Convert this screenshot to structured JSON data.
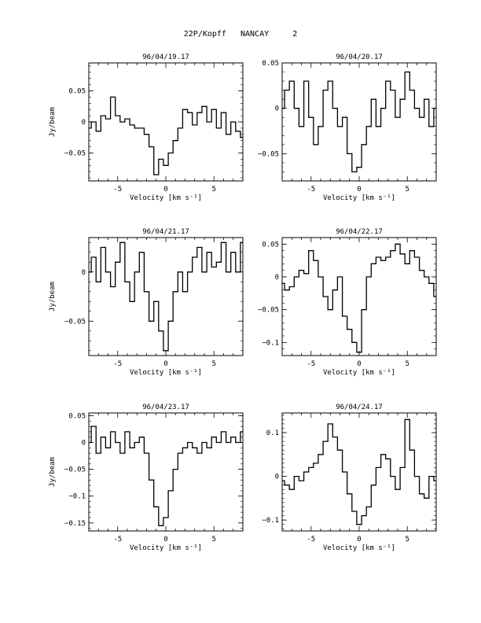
{
  "page": {
    "title": "22P/Kopff   NANCAY     2"
  },
  "chart_data": [
    {
      "type": "line",
      "title": "96/04/19.17",
      "xlabel": "Velocity [km s⁻¹]",
      "ylabel": "Jy/beam",
      "xlim": [
        -8,
        8
      ],
      "ylim": [
        -0.095,
        0.095
      ],
      "xticks": [
        -5,
        0,
        5
      ],
      "yticks": [
        -0.05,
        0,
        0.05
      ],
      "yticklabels": [
        "−0.05",
        "0",
        "0.05"
      ],
      "series": [
        {
          "x": [
            -8.0,
            -7.5,
            -7.0,
            -6.5,
            -6.0,
            -5.5,
            -5.0,
            -4.5,
            -4.0,
            -3.5,
            -3.0,
            -2.5,
            -2.0,
            -1.5,
            -1.0,
            -0.5,
            0.0,
            0.5,
            1.0,
            1.5,
            2.0,
            2.5,
            3.0,
            3.5,
            4.0,
            4.5,
            5.0,
            5.5,
            6.0,
            6.5,
            7.0,
            7.5,
            8.0
          ],
          "y": [
            -0.01,
            0.0,
            -0.015,
            0.01,
            0.005,
            0.04,
            0.01,
            0.0,
            0.005,
            -0.005,
            -0.01,
            -0.01,
            -0.02,
            -0.04,
            -0.085,
            -0.06,
            -0.07,
            -0.05,
            -0.03,
            -0.01,
            0.02,
            0.015,
            -0.005,
            0.015,
            0.025,
            0.0,
            0.02,
            -0.01,
            0.015,
            -0.02,
            0.0,
            -0.015,
            -0.025
          ]
        }
      ]
    },
    {
      "type": "line",
      "title": "96/04/20.17",
      "xlabel": "Velocity [km s⁻¹]",
      "ylabel": "",
      "xlim": [
        -8,
        8
      ],
      "ylim": [
        -0.08,
        0.05
      ],
      "xticks": [
        -5,
        0,
        5
      ],
      "yticks": [
        -0.05,
        0,
        0.05
      ],
      "yticklabels": [
        "−0.05",
        "0",
        "0.05"
      ],
      "series": [
        {
          "x": [
            -8.0,
            -7.5,
            -7.0,
            -6.5,
            -6.0,
            -5.5,
            -5.0,
            -4.5,
            -4.0,
            -3.5,
            -3.0,
            -2.5,
            -2.0,
            -1.5,
            -1.0,
            -0.5,
            0.0,
            0.5,
            1.0,
            1.5,
            2.0,
            2.5,
            3.0,
            3.5,
            4.0,
            4.5,
            5.0,
            5.5,
            6.0,
            6.5,
            7.0,
            7.5,
            8.0
          ],
          "y": [
            0.0,
            0.02,
            0.03,
            0.0,
            -0.02,
            0.03,
            -0.01,
            -0.04,
            -0.02,
            0.02,
            0.03,
            0.0,
            -0.02,
            -0.01,
            -0.05,
            -0.07,
            -0.065,
            -0.04,
            -0.02,
            0.01,
            -0.02,
            0.0,
            0.03,
            0.02,
            -0.01,
            0.01,
            0.04,
            0.02,
            0.0,
            -0.01,
            0.01,
            -0.02,
            0.0
          ]
        }
      ]
    },
    {
      "type": "line",
      "title": "96/04/21.17",
      "xlabel": "Velocity [km s⁻¹]",
      "ylabel": "Jy/beam",
      "xlim": [
        -8,
        8
      ],
      "ylim": [
        -0.085,
        0.035
      ],
      "xticks": [
        -5,
        0,
        5
      ],
      "yticks": [
        -0.05,
        0
      ],
      "yticklabels": [
        "−0.05",
        "0"
      ],
      "series": [
        {
          "x": [
            -8.0,
            -7.5,
            -7.0,
            -6.5,
            -6.0,
            -5.5,
            -5.0,
            -4.5,
            -4.0,
            -3.5,
            -3.0,
            -2.5,
            -2.0,
            -1.5,
            -1.0,
            -0.5,
            0.0,
            0.5,
            1.0,
            1.5,
            2.0,
            2.5,
            3.0,
            3.5,
            4.0,
            4.5,
            5.0,
            5.5,
            6.0,
            6.5,
            7.0,
            7.5,
            8.0
          ],
          "y": [
            0.0,
            0.015,
            -0.01,
            0.025,
            0.0,
            -0.015,
            0.01,
            0.03,
            -0.01,
            -0.03,
            0.0,
            0.02,
            -0.02,
            -0.05,
            -0.03,
            -0.06,
            -0.08,
            -0.05,
            -0.02,
            0.0,
            -0.02,
            0.0,
            0.015,
            0.025,
            0.0,
            0.02,
            0.005,
            0.01,
            0.03,
            0.0,
            0.02,
            0.0,
            0.03
          ]
        }
      ]
    },
    {
      "type": "line",
      "title": "96/04/22.17",
      "xlabel": "Velocity [km s⁻¹]",
      "ylabel": "",
      "xlim": [
        -8,
        8
      ],
      "ylim": [
        -0.12,
        0.06
      ],
      "xticks": [
        -5,
        0,
        5
      ],
      "yticks": [
        -0.1,
        -0.05,
        0,
        0.05
      ],
      "yticklabels": [
        "−0.1",
        "−0.05",
        "0",
        "0.05"
      ],
      "series": [
        {
          "x": [
            -8.0,
            -7.5,
            -7.0,
            -6.5,
            -6.0,
            -5.5,
            -5.0,
            -4.5,
            -4.0,
            -3.5,
            -3.0,
            -2.5,
            -2.0,
            -1.5,
            -1.0,
            -0.5,
            0.0,
            0.5,
            1.0,
            1.5,
            2.0,
            2.5,
            3.0,
            3.5,
            4.0,
            4.5,
            5.0,
            5.5,
            6.0,
            6.5,
            7.0,
            7.5,
            8.0
          ],
          "y": [
            -0.01,
            -0.02,
            -0.015,
            0.0,
            0.01,
            0.005,
            0.04,
            0.025,
            0.0,
            -0.03,
            -0.05,
            -0.02,
            0.0,
            -0.06,
            -0.08,
            -0.1,
            -0.115,
            -0.05,
            0.0,
            0.02,
            0.03,
            0.025,
            0.03,
            0.04,
            0.05,
            0.035,
            0.02,
            0.04,
            0.03,
            0.01,
            0.0,
            -0.01,
            -0.03
          ]
        }
      ]
    },
    {
      "type": "line",
      "title": "96/04/23.17",
      "xlabel": "Velocity [km s⁻¹]",
      "ylabel": "Jy/beam",
      "xlim": [
        -8,
        8
      ],
      "ylim": [
        -0.165,
        0.055
      ],
      "xticks": [
        -5,
        0,
        5
      ],
      "yticks": [
        -0.15,
        -0.1,
        -0.05,
        0,
        0.05
      ],
      "yticklabels": [
        "−0.15",
        "−0.1",
        "−0.05",
        "0",
        "0.05"
      ],
      "series": [
        {
          "x": [
            -8.0,
            -7.5,
            -7.0,
            -6.5,
            -6.0,
            -5.5,
            -5.0,
            -4.5,
            -4.0,
            -3.5,
            -3.0,
            -2.5,
            -2.0,
            -1.5,
            -1.0,
            -0.5,
            0.0,
            0.5,
            1.0,
            1.5,
            2.0,
            2.5,
            3.0,
            3.5,
            4.0,
            4.5,
            5.0,
            5.5,
            6.0,
            6.5,
            7.0,
            7.5,
            8.0
          ],
          "y": [
            0.0,
            0.03,
            -0.02,
            0.01,
            -0.01,
            0.02,
            0.0,
            -0.02,
            0.02,
            -0.01,
            0.0,
            0.01,
            -0.02,
            -0.07,
            -0.12,
            -0.155,
            -0.14,
            -0.09,
            -0.05,
            -0.02,
            -0.01,
            0.0,
            -0.01,
            -0.02,
            0.0,
            -0.01,
            0.01,
            0.0,
            0.02,
            0.0,
            0.01,
            0.0,
            0.02
          ]
        }
      ]
    },
    {
      "type": "line",
      "title": "96/04/24.17",
      "xlabel": "Velocity [km s⁻¹]",
      "ylabel": "",
      "xlim": [
        -8,
        8
      ],
      "ylim": [
        -0.125,
        0.145
      ],
      "xticks": [
        -5,
        0,
        5
      ],
      "yticks": [
        -0.1,
        0,
        0.1
      ],
      "yticklabels": [
        "−0.1",
        "0",
        "0.1"
      ],
      "series": [
        {
          "x": [
            -8.0,
            -7.5,
            -7.0,
            -6.5,
            -6.0,
            -5.5,
            -5.0,
            -4.5,
            -4.0,
            -3.5,
            -3.0,
            -2.5,
            -2.0,
            -1.5,
            -1.0,
            -0.5,
            0.0,
            0.5,
            1.0,
            1.5,
            2.0,
            2.5,
            3.0,
            3.5,
            4.0,
            4.5,
            5.0,
            5.5,
            6.0,
            6.5,
            7.0,
            7.5,
            8.0
          ],
          "y": [
            -0.01,
            -0.02,
            -0.03,
            0.0,
            -0.01,
            0.01,
            0.02,
            0.03,
            0.05,
            0.08,
            0.12,
            0.09,
            0.06,
            0.01,
            -0.04,
            -0.08,
            -0.11,
            -0.09,
            -0.07,
            -0.02,
            0.02,
            0.05,
            0.04,
            0.0,
            -0.03,
            0.02,
            0.13,
            0.06,
            0.0,
            -0.04,
            -0.05,
            0.0,
            -0.01
          ]
        }
      ]
    }
  ]
}
